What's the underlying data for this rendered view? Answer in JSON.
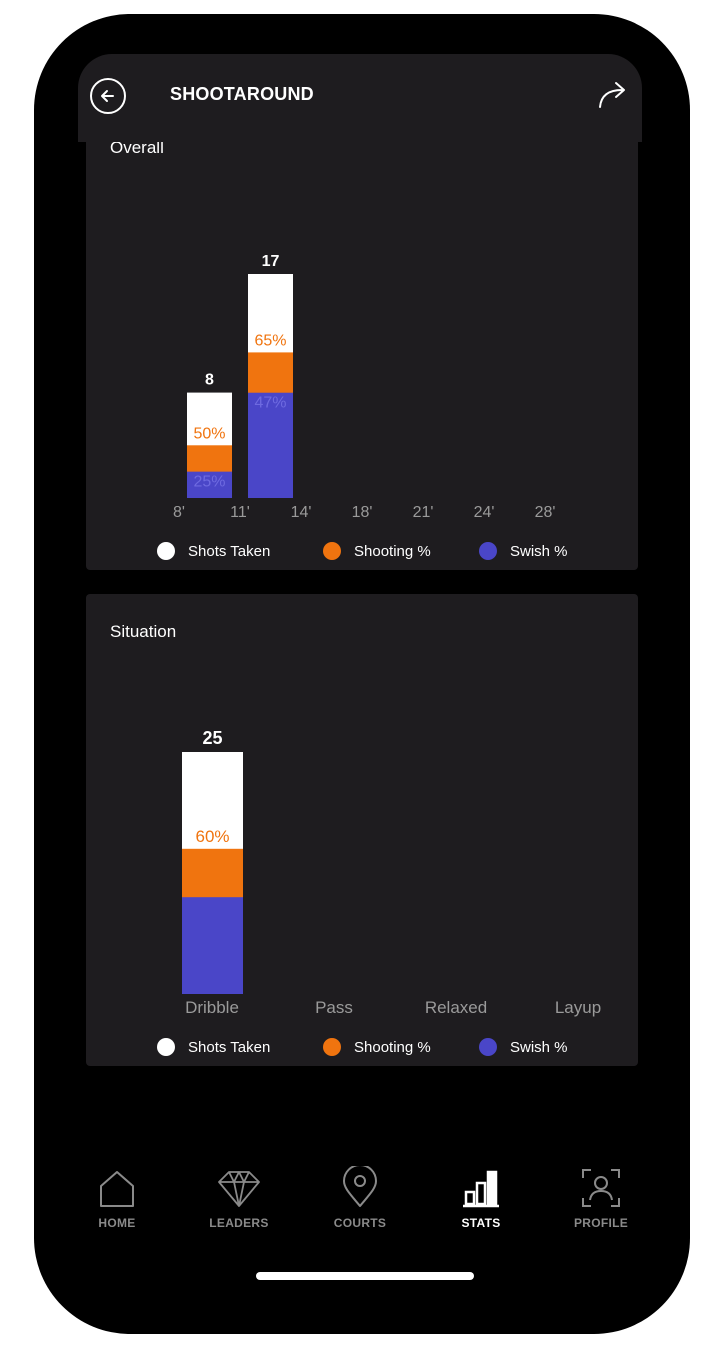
{
  "header": {
    "title": "SHOOTAROUND"
  },
  "legend": {
    "shots": "Shots Taken",
    "shooting": "Shooting %",
    "swish": "Swish %"
  },
  "colors": {
    "shots": "#ffffff",
    "shooting": "#f0740f",
    "swish": "#4a46c8",
    "card": "#1e1c1f"
  },
  "tabs": [
    {
      "label": "HOME",
      "icon": "home-icon"
    },
    {
      "label": "LEADERS",
      "icon": "diamond-icon"
    },
    {
      "label": "COURTS",
      "icon": "location-pin-icon"
    },
    {
      "label": "STATS",
      "icon": "bar-chart-icon",
      "active": true
    },
    {
      "label": "PROFILE",
      "icon": "profile-icon"
    }
  ],
  "chart_data": [
    {
      "type": "bar",
      "title": "Overall",
      "categories": [
        "8'",
        "11'",
        "14'",
        "18'",
        "21'",
        "24'",
        "28'"
      ],
      "series": [
        {
          "name": "Shots Taken",
          "values": [
            8,
            17,
            null,
            null,
            null,
            null,
            null
          ]
        },
        {
          "name": "Shooting %",
          "values": [
            50,
            65,
            null,
            null,
            null,
            null,
            null
          ]
        },
        {
          "name": "Swish %",
          "values": [
            25,
            47,
            null,
            null,
            null,
            null,
            null
          ]
        }
      ],
      "legend_position": "bottom"
    },
    {
      "type": "bar",
      "title": "Situation",
      "categories": [
        "Dribble",
        "Pass",
        "Relaxed",
        "Layup"
      ],
      "series": [
        {
          "name": "Shots Taken",
          "values": [
            25,
            null,
            null,
            null
          ]
        },
        {
          "name": "Shooting %",
          "values": [
            60,
            null,
            null,
            null
          ]
        },
        {
          "name": "Swish %",
          "values": [
            40,
            null,
            null,
            null
          ]
        }
      ],
      "legend_position": "bottom"
    }
  ]
}
